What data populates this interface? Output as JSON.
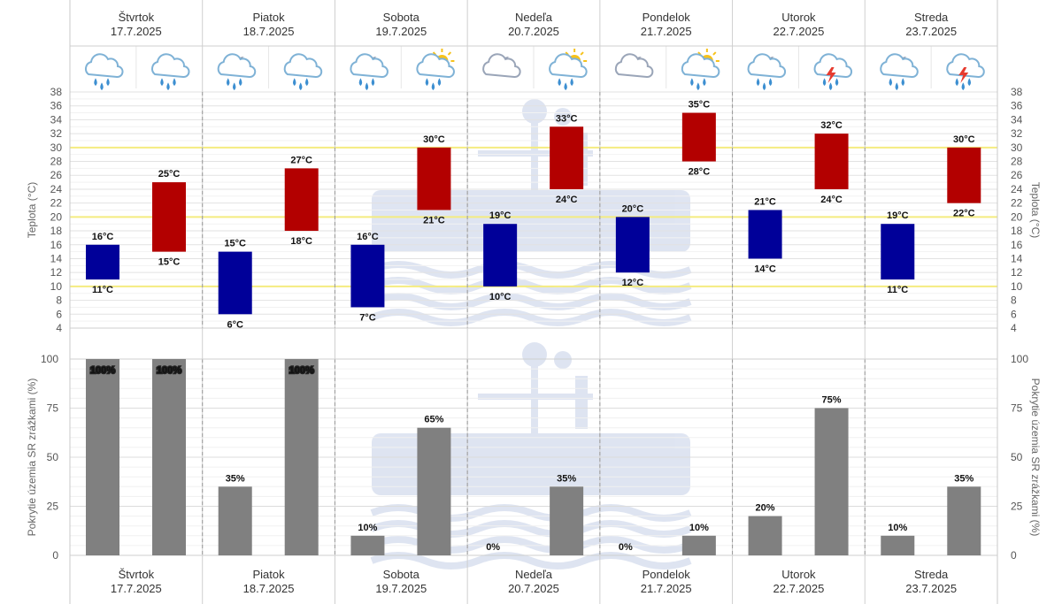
{
  "days": [
    {
      "name": "Štvrtok",
      "date": "17.7.2025",
      "icons": [
        "cloud-rain-icon",
        "cloud-rain-icon"
      ]
    },
    {
      "name": "Piatok",
      "date": "18.7.2025",
      "icons": [
        "moon-cloud-rain-icon",
        "cloud-rain-icon"
      ]
    },
    {
      "name": "Sobota",
      "date": "19.7.2025",
      "icons": [
        "moon-cloud-rain-icon",
        "sun-cloud-rain-icon"
      ]
    },
    {
      "name": "Nedeľa",
      "date": "20.7.2025",
      "icons": [
        "moon-cloud-icon",
        "sun-cloud-rain-icon"
      ]
    },
    {
      "name": "Pondelok",
      "date": "21.7.2025",
      "icons": [
        "moon-cloud-icon",
        "sun-cloud-rain-icon"
      ]
    },
    {
      "name": "Utorok",
      "date": "22.7.2025",
      "icons": [
        "moon-cloud-rain-icon",
        "thunderstorm-icon"
      ]
    },
    {
      "name": "Streda",
      "date": "23.7.2025",
      "icons": [
        "moon-cloud-rain-icon",
        "thunderstorm-icon"
      ]
    }
  ],
  "chart_data": [
    {
      "type": "bar",
      "title": "",
      "ylabel": "Teplota (°C)",
      "ylim": [
        4,
        38
      ],
      "yticks": [
        4,
        6,
        8,
        10,
        12,
        14,
        16,
        18,
        20,
        22,
        24,
        26,
        28,
        30,
        32,
        34,
        36,
        38
      ],
      "reference_lines": [
        10,
        20,
        30
      ],
      "unit": "°C",
      "series": [
        {
          "part": "night",
          "color": "#000099",
          "low": [
            11,
            6,
            7,
            10,
            12,
            14,
            11
          ],
          "high": [
            16,
            15,
            16,
            19,
            20,
            21,
            19
          ]
        },
        {
          "part": "day",
          "color": "#b30000",
          "low": [
            15,
            18,
            21,
            24,
            28,
            24,
            22
          ],
          "high": [
            25,
            27,
            30,
            33,
            35,
            32,
            30
          ]
        }
      ]
    },
    {
      "type": "bar",
      "ylabel": "Pokrytie územia SR zrážkami (%)",
      "ylim": [
        0,
        100
      ],
      "yticks": [
        0,
        25,
        50,
        75,
        100
      ],
      "unit": "%",
      "color": "#808080",
      "series": [
        {
          "part": "night",
          "values": [
            100,
            35,
            10,
            0,
            0,
            20,
            10
          ]
        },
        {
          "part": "day",
          "values": [
            100,
            100,
            65,
            35,
            10,
            75,
            35
          ]
        }
      ]
    }
  ]
}
